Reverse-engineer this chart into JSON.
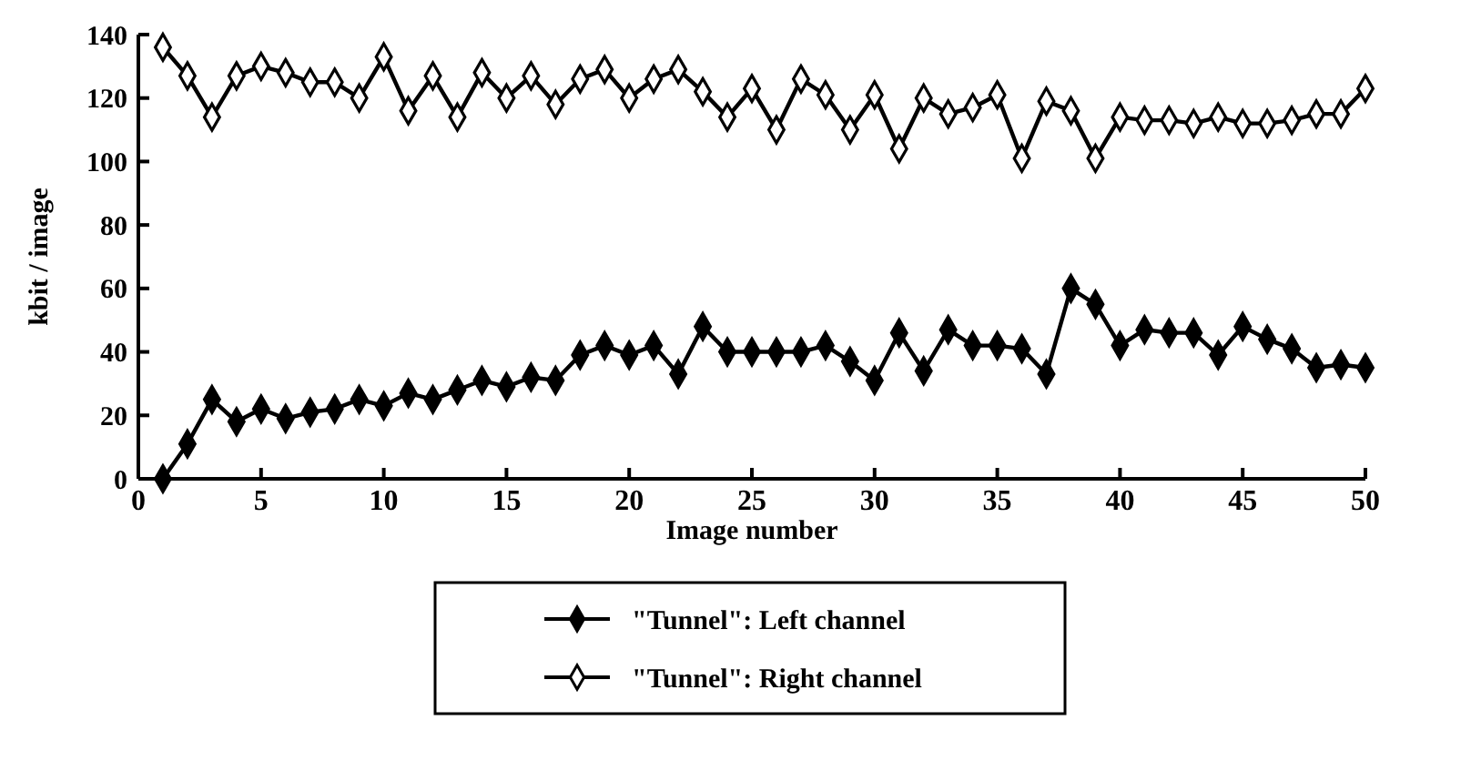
{
  "chart_data": {
    "type": "line",
    "xlabel": "Image number",
    "ylabel": "kbit / image",
    "x": [
      1,
      2,
      3,
      4,
      5,
      6,
      7,
      8,
      9,
      10,
      11,
      12,
      13,
      14,
      15,
      16,
      17,
      18,
      19,
      20,
      21,
      22,
      23,
      24,
      25,
      26,
      27,
      28,
      29,
      30,
      31,
      32,
      33,
      34,
      35,
      36,
      37,
      38,
      39,
      40,
      41,
      42,
      43,
      44,
      45,
      46,
      47,
      48,
      49,
      50
    ],
    "series": [
      {
        "name": "\"Tunnel\": Left channel",
        "color": "#000000",
        "values": [
          0,
          11,
          25,
          18,
          22,
          19,
          21,
          22,
          25,
          23,
          27,
          25,
          28,
          31,
          29,
          32,
          31,
          39,
          42,
          39,
          42,
          33,
          48,
          40,
          40,
          40,
          40,
          42,
          37,
          31,
          46,
          34,
          47,
          42,
          42,
          41,
          33,
          60,
          55,
          42,
          47,
          46,
          46,
          39,
          48,
          44,
          41,
          35,
          36,
          35
        ]
      },
      {
        "name": "\"Tunnel\": Right channel",
        "color": "#000000",
        "values": [
          136,
          127,
          114,
          127,
          130,
          128,
          125,
          125,
          120,
          133,
          116,
          127,
          114,
          128,
          120,
          127,
          118,
          126,
          129,
          120,
          126,
          129,
          122,
          114,
          123,
          110,
          126,
          121,
          110,
          121,
          104,
          120,
          115,
          117,
          121,
          101,
          119,
          116,
          101,
          114,
          113,
          113,
          112,
          114,
          112,
          112,
          113,
          115,
          115,
          123
        ]
      }
    ],
    "xlim": [
      0,
      50
    ],
    "xticks": [
      0,
      5,
      10,
      15,
      20,
      25,
      30,
      35,
      40,
      45,
      50
    ],
    "ylim": [
      0,
      140
    ],
    "yticks": [
      0,
      20,
      40,
      60,
      80,
      100,
      120,
      140
    ],
    "grid": false,
    "legend": "bottom",
    "marker": "diamond",
    "line_style": "solid"
  }
}
